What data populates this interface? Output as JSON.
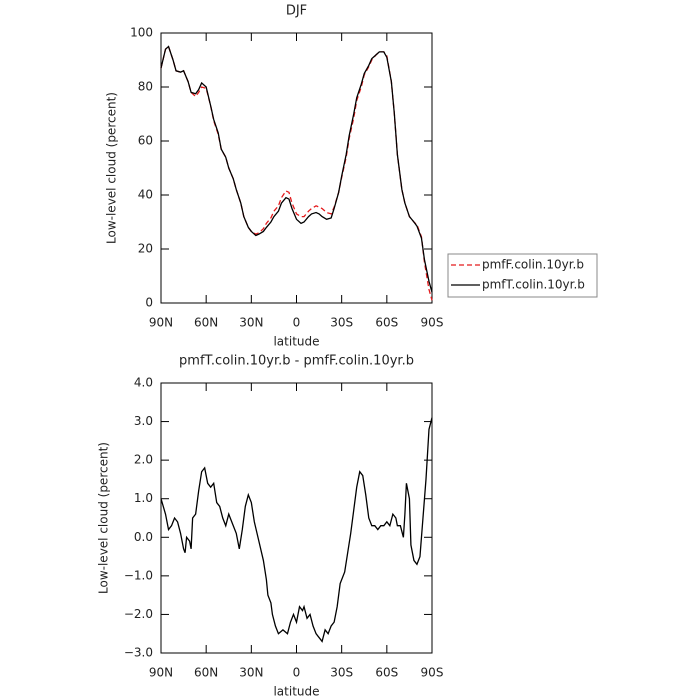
{
  "chart_data": [
    {
      "type": "line",
      "title": "DJF",
      "xlabel": "latitude",
      "ylabel": "Low-level cloud (percent)",
      "x": [
        90,
        87,
        85,
        82,
        80,
        77,
        75,
        72,
        70,
        67,
        65,
        63,
        60,
        57,
        55,
        52,
        50,
        47,
        45,
        42,
        40,
        37,
        35,
        32,
        30,
        27,
        25,
        22,
        20,
        17,
        15,
        12,
        10,
        7,
        5,
        3,
        0,
        -3,
        -5,
        -8,
        -10,
        -13,
        -15,
        -17,
        -20,
        -23,
        -25,
        -28,
        -30,
        -33,
        -35,
        -38,
        -40,
        -43,
        -45,
        -48,
        -50,
        -53,
        -55,
        -58,
        -60,
        -63,
        -65,
        -67,
        -70,
        -72,
        -75,
        -78,
        -80,
        -83,
        -85,
        -88,
        -90
      ],
      "series": [
        {
          "name": "pmfF.colin.10yr.b",
          "color": "#e41a1c",
          "line_style": "dashed",
          "values": [
            87,
            94,
            95,
            90,
            86,
            85.5,
            86,
            82,
            78,
            76.5,
            78,
            80,
            79.5,
            73,
            67.5,
            62.5,
            57,
            54,
            50,
            46,
            42,
            37,
            32,
            28,
            26.5,
            25.5,
            26,
            27.5,
            29.5,
            31.5,
            34,
            36,
            39,
            41.5,
            41,
            37,
            33,
            32,
            32,
            34,
            35,
            36,
            35.5,
            35,
            33.5,
            33,
            35.5,
            41,
            46.5,
            54,
            61,
            68.5,
            75,
            80,
            84.5,
            87.5,
            90,
            92,
            93,
            93,
            91.5,
            82,
            70,
            55,
            42,
            37,
            32,
            30,
            29,
            24.5,
            15,
            5,
            1
          ]
        },
        {
          "name": "pmfT.colin.10yr.b",
          "color": "#000000",
          "line_style": "solid",
          "values": [
            87,
            94,
            95,
            90,
            86,
            85.5,
            86,
            82,
            78,
            77.5,
            79,
            81.5,
            80,
            73,
            68,
            63,
            57,
            54,
            50,
            46,
            42,
            37,
            32,
            28,
            26.5,
            25,
            25.5,
            26.5,
            28,
            30,
            32,
            34,
            37,
            39,
            38.5,
            35,
            31,
            29.5,
            30,
            32,
            33,
            33.5,
            33,
            32,
            31,
            31.5,
            35,
            41,
            47,
            55,
            62,
            70,
            76,
            81,
            85,
            88,
            90.5,
            92,
            93,
            93,
            91,
            82,
            70,
            55,
            42,
            37,
            32,
            30,
            28.5,
            24,
            16,
            8,
            4
          ]
        }
      ],
      "xlim": [
        90,
        -90
      ],
      "xticks": [
        {
          "value": 90,
          "label": "90N"
        },
        {
          "value": 60,
          "label": "60N"
        },
        {
          "value": 30,
          "label": "30N"
        },
        0,
        {
          "value": -30,
          "label": "30S"
        },
        {
          "value": -60,
          "label": "60S"
        },
        {
          "value": -90,
          "label": "90S"
        }
      ],
      "ylim": [
        0,
        100
      ],
      "yticks": [
        0,
        20,
        40,
        60,
        80,
        100
      ],
      "legend": "right"
    },
    {
      "type": "line",
      "title": "pmfT.colin.10yr.b - pmfF.colin.10yr.b",
      "xlabel": "latitude",
      "ylabel": "Low-level cloud (percent)",
      "x": [
        90,
        87,
        85,
        83,
        81,
        79,
        77,
        75,
        74,
        73,
        71,
        70,
        69,
        67,
        65,
        63,
        61,
        59,
        57,
        55,
        53,
        51,
        49,
        47,
        45,
        43,
        40,
        38,
        36,
        34,
        32,
        30,
        28,
        25,
        22,
        20,
        19,
        17,
        16,
        14,
        12,
        9,
        6,
        4,
        2,
        0,
        -2,
        -4,
        -5,
        -7,
        -9,
        -11,
        -13,
        -15,
        -17,
        -19,
        -21,
        -23,
        -25,
        -27,
        -29,
        -32,
        -34,
        -36,
        -38,
        -40,
        -42,
        -44,
        -46,
        -48,
        -50,
        -52,
        -54,
        -56,
        -58,
        -60,
        -62,
        -64,
        -66,
        -67,
        -69,
        -71,
        -72,
        -73,
        -75,
        -76,
        -78,
        -80,
        -82,
        -84,
        -86,
        -88,
        -90
      ],
      "color": "#000000",
      "values": [
        1.0,
        0.6,
        0.2,
        0.3,
        0.5,
        0.4,
        0.1,
        -0.3,
        -0.4,
        0.0,
        -0.1,
        -0.3,
        0.5,
        0.6,
        1.2,
        1.7,
        1.8,
        1.4,
        1.3,
        1.4,
        0.9,
        0.8,
        0.5,
        0.3,
        0.6,
        0.4,
        0.1,
        -0.3,
        0.2,
        0.8,
        1.1,
        0.9,
        0.4,
        -0.1,
        -0.6,
        -1.1,
        -1.5,
        -1.7,
        -2.0,
        -2.3,
        -2.5,
        -2.4,
        -2.5,
        -2.2,
        -2.0,
        -2.2,
        -1.8,
        -1.9,
        -1.8,
        -2.1,
        -2.0,
        -2.3,
        -2.5,
        -2.6,
        -2.7,
        -2.4,
        -2.5,
        -2.3,
        -2.2,
        -1.8,
        -1.2,
        -0.9,
        -0.4,
        0.1,
        0.7,
        1.3,
        1.7,
        1.6,
        1.1,
        0.5,
        0.3,
        0.3,
        0.2,
        0.3,
        0.3,
        0.4,
        0.3,
        0.6,
        0.5,
        0.3,
        0.3,
        0.0,
        0.6,
        1.4,
        1.0,
        -0.2,
        -0.6,
        -0.7,
        -0.5,
        0.5,
        1.5,
        2.8,
        3.1
      ],
      "xlim": [
        90,
        -90
      ],
      "xticks": [
        {
          "value": 90,
          "label": "90N"
        },
        {
          "value": 60,
          "label": "60N"
        },
        {
          "value": 30,
          "label": "30N"
        },
        0,
        {
          "value": -30,
          "label": "30S"
        },
        {
          "value": -60,
          "label": "60S"
        },
        {
          "value": -90,
          "label": "90S"
        }
      ],
      "ylim": [
        -3,
        4
      ],
      "yticks": [
        {
          "value": -3,
          "label": "−3.0"
        },
        {
          "value": -2,
          "label": "−2.0"
        },
        {
          "value": -1,
          "label": "−1.0"
        },
        {
          "value": 0,
          "label": "0.0"
        },
        {
          "value": 1,
          "label": "1.0"
        },
        {
          "value": 2,
          "label": "2.0"
        },
        {
          "value": 3,
          "label": "3.0"
        },
        {
          "value": 4,
          "label": "4.0"
        }
      ]
    }
  ]
}
